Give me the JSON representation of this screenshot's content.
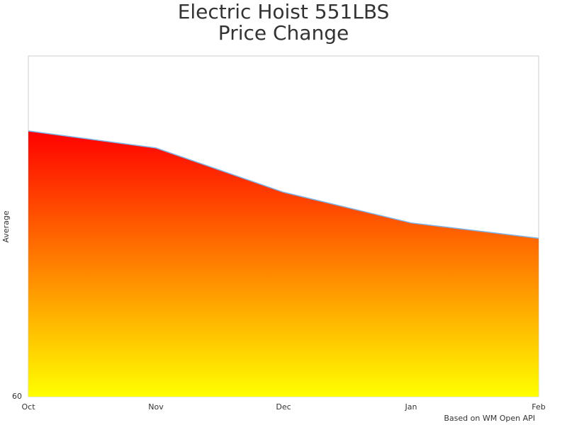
{
  "chart_data": {
    "type": "area",
    "title": [
      "Electric Hoist 551LBS",
      "Price Change"
    ],
    "y_label": "Average",
    "credits": "Based on WM Open API",
    "categories": [
      "Oct",
      "Nov",
      "Dec",
      "Jan",
      "Feb"
    ],
    "values": [
      75.6,
      74.6,
      72.0,
      70.2,
      69.3
    ],
    "ylim": [
      60,
      80
    ],
    "yticks": [
      60
    ],
    "line_color": "#7cb5ec",
    "gradient": [
      "#ff0000",
      "#ffff00"
    ]
  }
}
